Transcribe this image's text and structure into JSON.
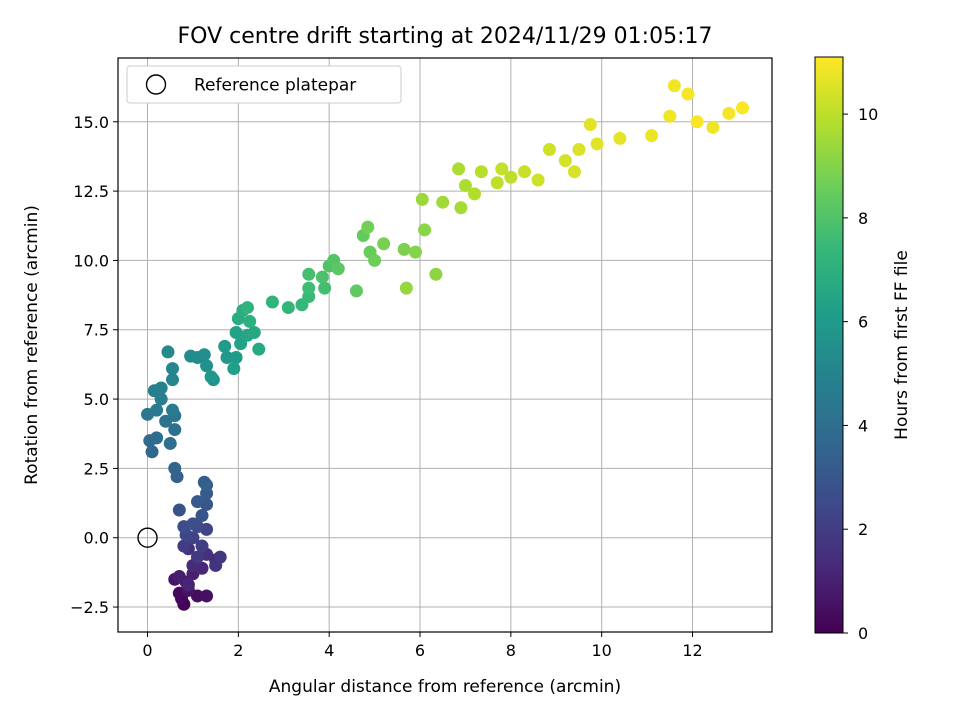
{
  "chart_data": {
    "type": "scatter",
    "title": "FOV centre drift starting at 2024/11/29 01:05:17",
    "xlabel": "Angular distance from reference (arcmin)",
    "ylabel": "Rotation from reference (arcmin)",
    "xlim": [
      -0.65,
      13.75
    ],
    "ylim": [
      -3.4,
      17.3
    ],
    "xticks": [
      0,
      2,
      4,
      6,
      8,
      10,
      12
    ],
    "xtick_labels": [
      "0",
      "2",
      "4",
      "6",
      "8",
      "10",
      "12"
    ],
    "yticks": [
      -2.5,
      0.0,
      2.5,
      5.0,
      7.5,
      10.0,
      12.5,
      15.0
    ],
    "ytick_labels": [
      "−2.5",
      "0.0",
      "2.5",
      "5.0",
      "7.5",
      "10.0",
      "12.5",
      "15.0"
    ],
    "grid": true,
    "legend": {
      "position": "top-left",
      "entries": [
        "Reference platepar"
      ]
    },
    "reference_point": {
      "x": 0.0,
      "y": 0.0,
      "label": "Reference platepar"
    },
    "colorbar": {
      "label": "Hours from first FF file",
      "range": [
        0,
        11.1
      ],
      "ticks": [
        0,
        2,
        4,
        6,
        8,
        10
      ],
      "tick_labels": [
        "0",
        "2",
        "4",
        "6",
        "8",
        "10"
      ],
      "colormap": "viridis"
    },
    "colormap_stops": [
      "#440154",
      "#482878",
      "#3e4989",
      "#31688e",
      "#26828e",
      "#1f9e89",
      "#35b779",
      "#6ece58",
      "#b5de2b",
      "#fde725"
    ],
    "points": [
      [
        0.8,
        -2.4,
        0.1
      ],
      [
        0.75,
        -2.2,
        0.2
      ],
      [
        0.7,
        -2.0,
        0.3
      ],
      [
        1.1,
        -2.1,
        0.4
      ],
      [
        1.3,
        -2.1,
        0.5
      ],
      [
        0.9,
        -1.9,
        0.6
      ],
      [
        0.6,
        -1.5,
        0.7
      ],
      [
        0.85,
        -1.6,
        0.8
      ],
      [
        0.7,
        -1.4,
        0.9
      ],
      [
        1.0,
        -1.3,
        1.0
      ],
      [
        0.9,
        -1.7,
        1.1
      ],
      [
        1.2,
        -1.1,
        1.2
      ],
      [
        1.5,
        -0.8,
        1.3
      ],
      [
        1.0,
        -1.0,
        1.4
      ],
      [
        1.3,
        -0.6,
        1.5
      ],
      [
        0.9,
        -0.4,
        1.6
      ],
      [
        1.5,
        -1.0,
        1.7
      ],
      [
        1.6,
        -0.7,
        1.8
      ],
      [
        1.1,
        -0.7,
        1.9
      ],
      [
        0.8,
        -0.3,
        2.0
      ],
      [
        1.2,
        -0.3,
        2.1
      ],
      [
        1.0,
        0.0,
        2.2
      ],
      [
        1.3,
        0.3,
        2.3
      ],
      [
        0.85,
        0.1,
        2.4
      ],
      [
        1.1,
        0.4,
        2.5
      ],
      [
        0.8,
        0.4,
        2.6
      ],
      [
        1.0,
        0.5,
        2.7
      ],
      [
        0.7,
        1.0,
        2.8
      ],
      [
        1.2,
        0.8,
        2.9
      ],
      [
        1.3,
        1.2,
        3.0
      ],
      [
        1.1,
        1.3,
        3.1
      ],
      [
        1.3,
        1.6,
        3.2
      ],
      [
        1.25,
        2.0,
        3.3
      ],
      [
        1.3,
        1.9,
        3.4
      ],
      [
        0.65,
        2.2,
        3.5
      ],
      [
        0.6,
        2.5,
        3.6
      ],
      [
        0.1,
        3.1,
        3.7
      ],
      [
        0.05,
        3.5,
        3.8
      ],
      [
        0.2,
        3.6,
        3.9
      ],
      [
        0.5,
        3.4,
        4.0
      ],
      [
        0.6,
        3.9,
        4.1
      ],
      [
        0.4,
        4.2,
        4.2
      ],
      [
        0.6,
        4.4,
        4.3
      ],
      [
        0.0,
        4.45,
        4.4
      ],
      [
        0.2,
        4.6,
        4.5
      ],
      [
        0.55,
        4.6,
        4.6
      ],
      [
        0.3,
        5.0,
        4.7
      ],
      [
        0.15,
        5.3,
        4.8
      ],
      [
        0.3,
        5.4,
        4.9
      ],
      [
        0.55,
        5.7,
        5.0
      ],
      [
        0.55,
        6.1,
        5.1
      ],
      [
        0.45,
        6.7,
        5.2
      ],
      [
        0.95,
        6.55,
        5.3
      ],
      [
        1.1,
        6.5,
        5.4
      ],
      [
        1.25,
        6.6,
        5.5
      ],
      [
        1.3,
        6.2,
        5.6
      ],
      [
        1.45,
        5.7,
        5.7
      ],
      [
        1.4,
        5.8,
        5.8
      ],
      [
        1.75,
        6.5,
        5.9
      ],
      [
        1.7,
        6.9,
        6.0
      ],
      [
        1.95,
        6.5,
        6.1
      ],
      [
        1.9,
        6.1,
        6.2
      ],
      [
        2.05,
        7.0,
        6.3
      ],
      [
        1.95,
        7.4,
        6.4
      ],
      [
        2.2,
        7.3,
        6.5
      ],
      [
        2.35,
        7.4,
        6.6
      ],
      [
        2.45,
        6.8,
        6.7
      ],
      [
        2.0,
        7.9,
        6.8
      ],
      [
        2.1,
        8.2,
        6.9
      ],
      [
        2.25,
        7.8,
        7.0
      ],
      [
        2.2,
        8.3,
        7.1
      ],
      [
        2.75,
        8.5,
        7.2
      ],
      [
        3.1,
        8.3,
        7.3
      ],
      [
        3.4,
        8.4,
        7.4
      ],
      [
        3.55,
        8.7,
        7.5
      ],
      [
        3.55,
        9.0,
        7.6
      ],
      [
        3.9,
        9.0,
        7.7
      ],
      [
        3.55,
        9.5,
        7.8
      ],
      [
        3.85,
        9.4,
        7.9
      ],
      [
        4.0,
        9.8,
        8.0
      ],
      [
        4.1,
        10.0,
        8.1
      ],
      [
        4.2,
        9.7,
        8.2
      ],
      [
        4.6,
        8.9,
        8.3
      ],
      [
        4.75,
        10.9,
        8.4
      ],
      [
        4.9,
        10.3,
        8.5
      ],
      [
        5.0,
        10.0,
        8.6
      ],
      [
        4.85,
        11.2,
        8.7
      ],
      [
        5.2,
        10.6,
        8.8
      ],
      [
        5.65,
        10.4,
        8.9
      ],
      [
        5.9,
        10.3,
        9.0
      ],
      [
        6.1,
        11.1,
        9.1
      ],
      [
        6.35,
        9.5,
        9.2
      ],
      [
        5.7,
        9.0,
        9.3
      ],
      [
        6.05,
        12.2,
        9.4
      ],
      [
        6.5,
        12.1,
        9.5
      ],
      [
        6.9,
        11.9,
        9.6
      ],
      [
        7.0,
        12.7,
        9.7
      ],
      [
        7.2,
        12.4,
        9.8
      ],
      [
        7.35,
        13.2,
        9.9
      ],
      [
        7.7,
        12.8,
        10.0
      ],
      [
        7.8,
        13.3,
        10.1
      ],
      [
        8.3,
        13.2,
        10.2
      ],
      [
        8.85,
        14.0,
        10.3
      ],
      [
        9.2,
        13.6,
        10.4
      ],
      [
        9.5,
        14.0,
        10.5
      ],
      [
        9.9,
        14.2,
        10.6
      ],
      [
        10.4,
        14.4,
        10.7
      ],
      [
        11.1,
        14.5,
        10.8
      ],
      [
        11.5,
        15.2,
        10.9
      ],
      [
        12.1,
        15.0,
        11.0
      ],
      [
        12.45,
        14.8,
        10.85
      ],
      [
        12.8,
        15.3,
        10.95
      ],
      [
        13.1,
        15.5,
        11.05
      ],
      [
        11.6,
        16.3,
        10.9
      ],
      [
        11.9,
        16.0,
        10.95
      ],
      [
        9.4,
        13.2,
        10.45
      ],
      [
        8.6,
        12.9,
        10.3
      ],
      [
        9.75,
        14.9,
        10.6
      ],
      [
        6.85,
        13.3,
        9.7
      ],
      [
        8.0,
        13.0,
        10.0
      ]
    ]
  }
}
